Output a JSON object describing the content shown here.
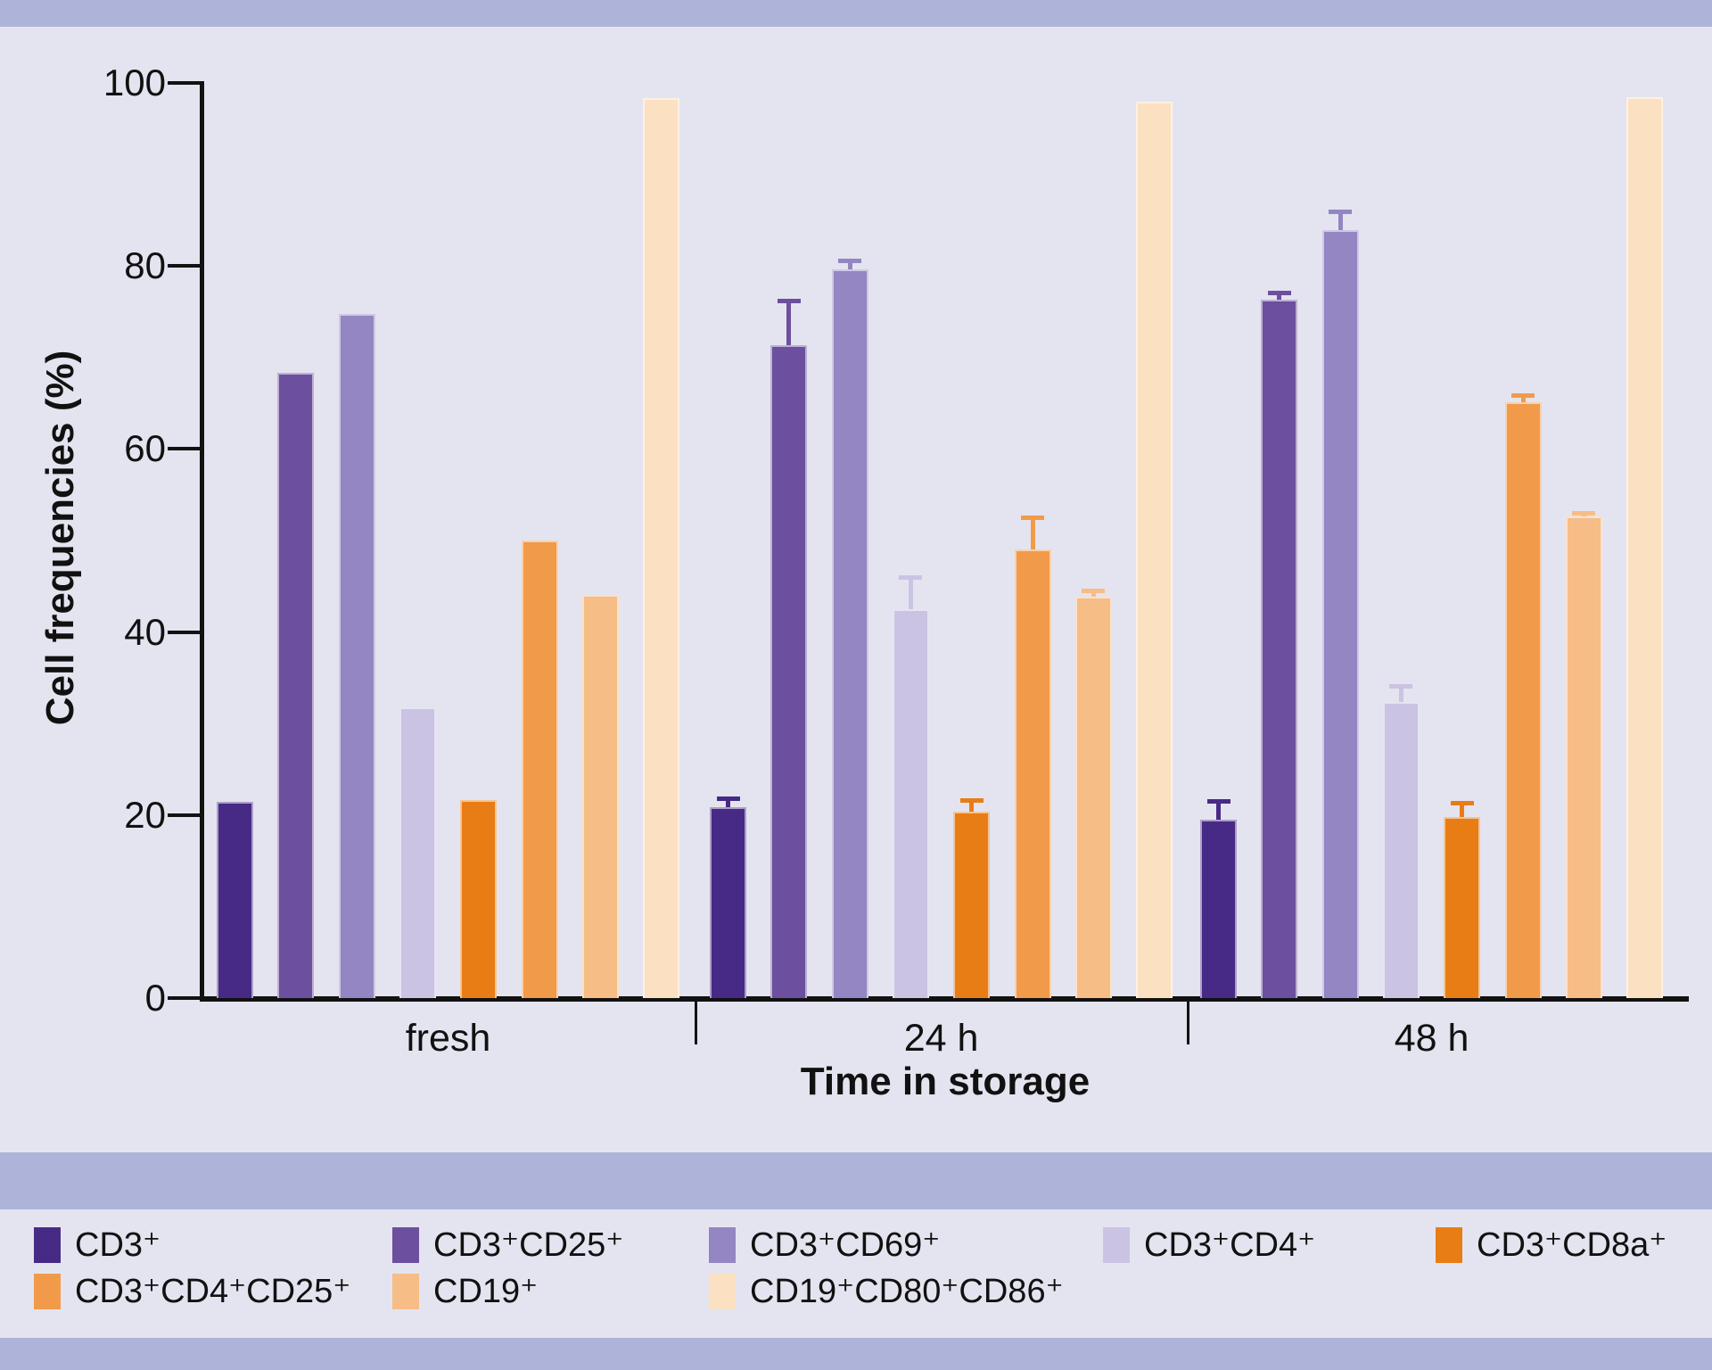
{
  "palette": {
    "background": "#e4e4f0",
    "accent_band": "#aeb3d9",
    "axis": "#121212"
  },
  "chart_data": {
    "type": "bar",
    "title": "",
    "xlabel": "Time in storage",
    "ylabel": "Cell frequencies (%)",
    "ylim": [
      0,
      100
    ],
    "yticks": [
      0,
      20,
      40,
      60,
      80,
      100
    ],
    "categories": [
      "fresh",
      "24 h",
      "48 h"
    ],
    "grid": false,
    "legend_position": "bottom",
    "error_bars": "sd, upper only",
    "series": [
      {
        "name": "CD3⁺",
        "color": "#472a85",
        "values": [
          21.4,
          20.9,
          19.5
        ],
        "errors": [
          0,
          0.8,
          1.9
        ]
      },
      {
        "name": "CD3⁺CD25⁺",
        "color": "#6c4f9e",
        "values": [
          68.3,
          71.3,
          76.3
        ],
        "errors": [
          0,
          4.8,
          0.7
        ]
      },
      {
        "name": "CD3⁺CD69⁺",
        "color": "#9485c3",
        "values": [
          74.8,
          79.6,
          83.9
        ],
        "errors": [
          0,
          0.9,
          2.0
        ]
      },
      {
        "name": "CD3⁺CD4⁺",
        "color": "#cbc3e3",
        "values": [
          31.8,
          42.5,
          32.4
        ],
        "errors": [
          0,
          3.4,
          1.6
        ]
      },
      {
        "name": "CD3⁺CD8a⁺",
        "color": "#e87d15",
        "values": [
          21.6,
          20.4,
          19.8
        ],
        "errors": [
          0,
          1.1,
          1.4
        ]
      },
      {
        "name": "CD3⁺CD4⁺CD25⁺",
        "color": "#f19a4a",
        "values": [
          50.0,
          49.0,
          65.1
        ],
        "errors": [
          0,
          3.4,
          0.7
        ]
      },
      {
        "name": "CD19⁺",
        "color": "#f7bd86",
        "values": [
          44.1,
          43.9,
          52.6
        ],
        "errors": [
          0,
          0.5,
          0.3
        ]
      },
      {
        "name": "CD19⁺CD80⁺CD86⁺",
        "color": "#fbe1c1",
        "values": [
          98.3,
          98.0,
          98.4
        ],
        "errors": [
          0,
          0.0,
          0.0
        ]
      }
    ]
  }
}
